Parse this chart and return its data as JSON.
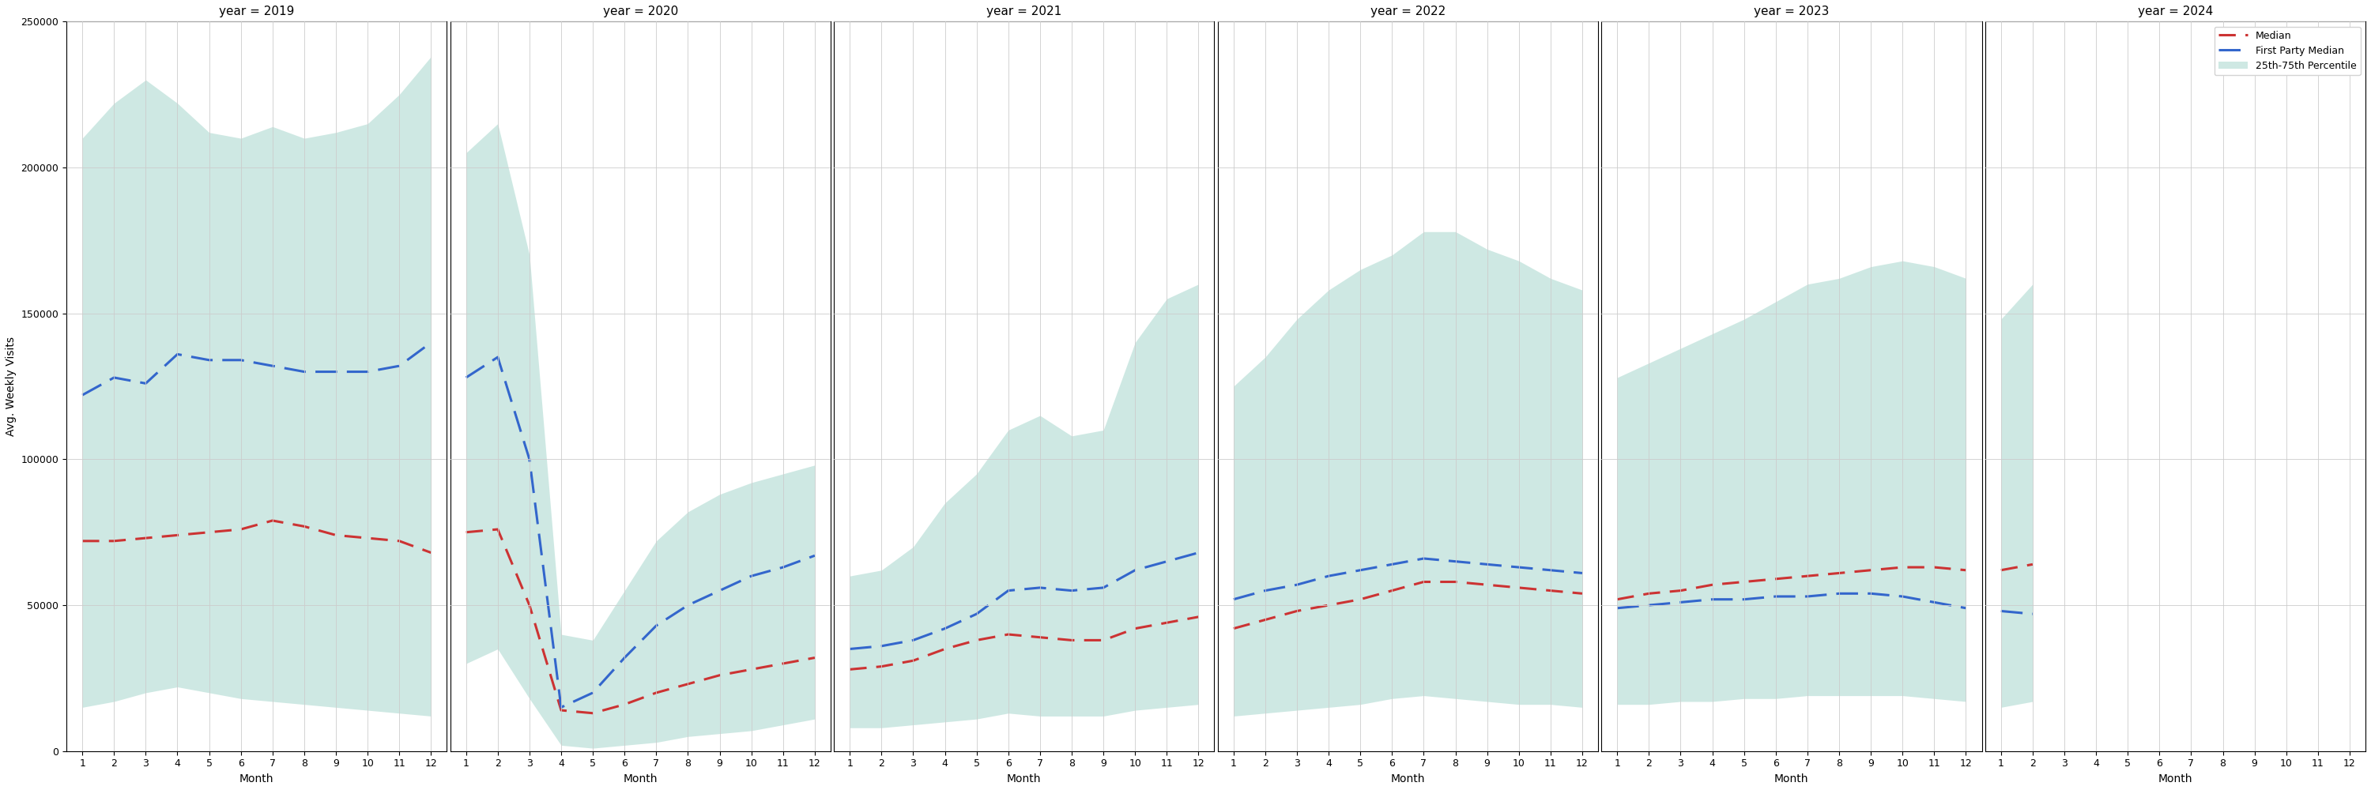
{
  "years": [
    2019,
    2020,
    2021,
    2022,
    2023,
    2024
  ],
  "ylim": [
    0,
    250000
  ],
  "yticks": [
    0,
    50000,
    100000,
    150000,
    200000,
    250000
  ],
  "ylabel": "Avg. Weekly Visits",
  "xlabel": "Month",
  "fill_color": "#9ed3c8",
  "fill_alpha": 0.5,
  "median_color": "#cc3333",
  "fp_color": "#3366cc",
  "data": {
    "2019": {
      "months": [
        1,
        2,
        3,
        4,
        5,
        6,
        7,
        8,
        9,
        10,
        11,
        12
      ],
      "median": [
        72000,
        72000,
        73000,
        74000,
        75000,
        76000,
        79000,
        77000,
        74000,
        73000,
        72000,
        68000
      ],
      "fp_median": [
        122000,
        128000,
        126000,
        136000,
        134000,
        134000,
        132000,
        130000,
        130000,
        130000,
        132000,
        140000
      ],
      "p25": [
        15000,
        17000,
        20000,
        22000,
        20000,
        18000,
        17000,
        16000,
        15000,
        14000,
        13000,
        12000
      ],
      "p75": [
        210000,
        222000,
        230000,
        222000,
        212000,
        210000,
        214000,
        210000,
        212000,
        215000,
        225000,
        238000
      ]
    },
    "2020": {
      "months": [
        1,
        2,
        3,
        4,
        5,
        6,
        7,
        8,
        9,
        10,
        11,
        12
      ],
      "median": [
        75000,
        76000,
        50000,
        14000,
        13000,
        16000,
        20000,
        23000,
        26000,
        28000,
        30000,
        32000
      ],
      "fp_median": [
        128000,
        135000,
        100000,
        15000,
        20000,
        32000,
        43000,
        50000,
        55000,
        60000,
        63000,
        67000
      ],
      "p25": [
        30000,
        35000,
        18000,
        2000,
        1000,
        2000,
        3000,
        5000,
        6000,
        7000,
        9000,
        11000
      ],
      "p75": [
        205000,
        215000,
        170000,
        40000,
        38000,
        55000,
        72000,
        82000,
        88000,
        92000,
        95000,
        98000
      ]
    },
    "2021": {
      "months": [
        1,
        2,
        3,
        4,
        5,
        6,
        7,
        8,
        9,
        10,
        11,
        12
      ],
      "median": [
        28000,
        29000,
        31000,
        35000,
        38000,
        40000,
        39000,
        38000,
        38000,
        42000,
        44000,
        46000
      ],
      "fp_median": [
        35000,
        36000,
        38000,
        42000,
        47000,
        55000,
        56000,
        55000,
        56000,
        62000,
        65000,
        68000
      ],
      "p25": [
        8000,
        8000,
        9000,
        10000,
        11000,
        13000,
        12000,
        12000,
        12000,
        14000,
        15000,
        16000
      ],
      "p75": [
        60000,
        62000,
        70000,
        85000,
        95000,
        110000,
        115000,
        108000,
        110000,
        140000,
        155000,
        160000
      ]
    },
    "2022": {
      "months": [
        1,
        2,
        3,
        4,
        5,
        6,
        7,
        8,
        9,
        10,
        11,
        12
      ],
      "median": [
        42000,
        45000,
        48000,
        50000,
        52000,
        55000,
        58000,
        58000,
        57000,
        56000,
        55000,
        54000
      ],
      "fp_median": [
        52000,
        55000,
        57000,
        60000,
        62000,
        64000,
        66000,
        65000,
        64000,
        63000,
        62000,
        61000
      ],
      "p25": [
        12000,
        13000,
        14000,
        15000,
        16000,
        18000,
        19000,
        18000,
        17000,
        16000,
        16000,
        15000
      ],
      "p75": [
        125000,
        135000,
        148000,
        158000,
        165000,
        170000,
        178000,
        178000,
        172000,
        168000,
        162000,
        158000
      ]
    },
    "2023": {
      "months": [
        1,
        2,
        3,
        4,
        5,
        6,
        7,
        8,
        9,
        10,
        11,
        12
      ],
      "median": [
        52000,
        54000,
        55000,
        57000,
        58000,
        59000,
        60000,
        61000,
        62000,
        63000,
        63000,
        62000
      ],
      "fp_median": [
        49000,
        50000,
        51000,
        52000,
        52000,
        53000,
        53000,
        54000,
        54000,
        53000,
        51000,
        49000
      ],
      "p25": [
        16000,
        16000,
        17000,
        17000,
        18000,
        18000,
        19000,
        19000,
        19000,
        19000,
        18000,
        17000
      ],
      "p75": [
        128000,
        133000,
        138000,
        143000,
        148000,
        154000,
        160000,
        162000,
        166000,
        168000,
        166000,
        162000
      ]
    },
    "2024": {
      "months": [
        1,
        2
      ],
      "median": [
        62000,
        64000
      ],
      "fp_median": [
        48000,
        47000
      ],
      "p25": [
        15000,
        17000
      ],
      "p75": [
        148000,
        160000
      ]
    }
  },
  "title_fontsize": 11,
  "label_fontsize": 10,
  "tick_fontsize": 9
}
